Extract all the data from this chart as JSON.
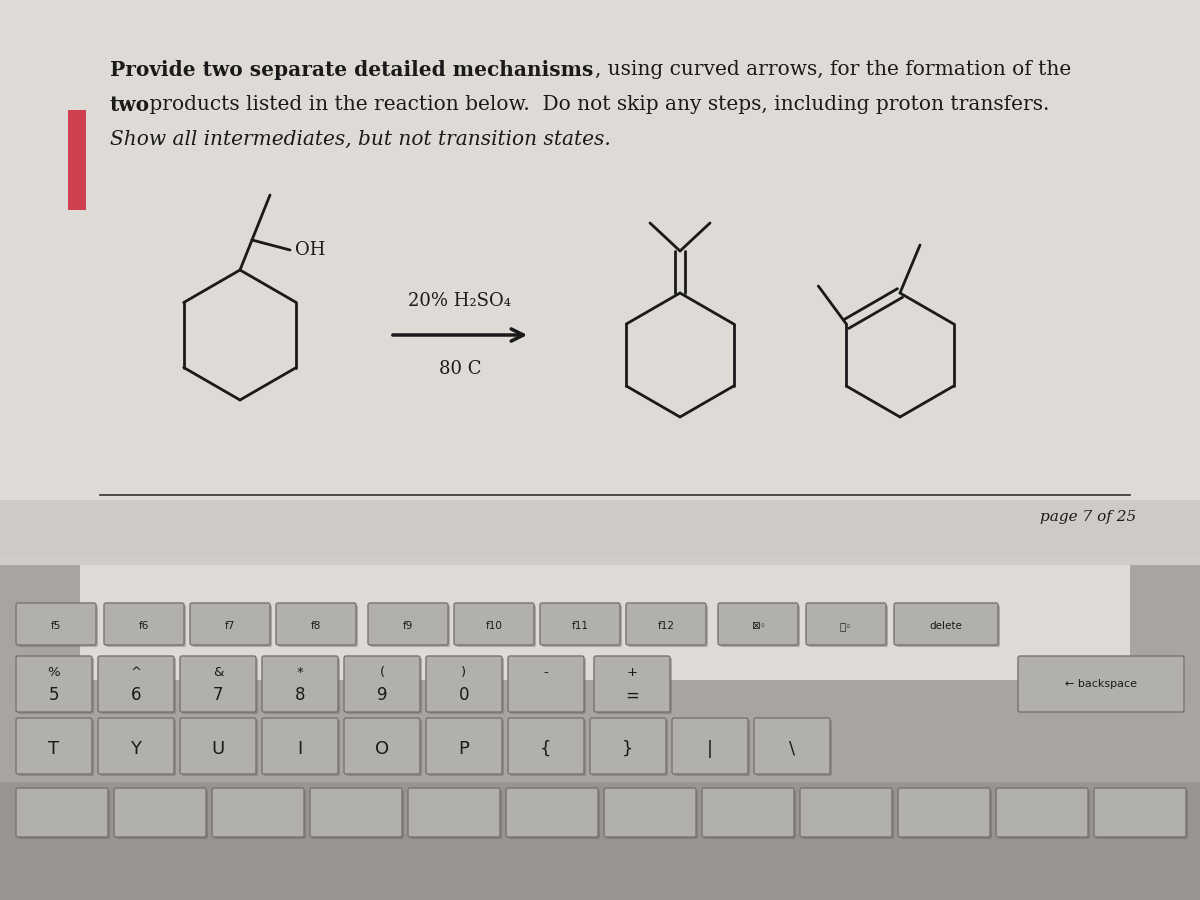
{
  "title_bold": "Provide two separate detailed mechanisms",
  "title_normal": ", using curved arrows, for the formation of the",
  "line2_bold": "two",
  "line2_normal": " products listed in the reaction below.  Do not skip any steps, including proton transfers.",
  "line3_italic": "Show all intermediates, but not transition states.",
  "reagent_label_top": "20% H₂SO₄",
  "reagent_label_bottom": "80 C",
  "oh_label": "OH",
  "page_text": "page 7 of 25",
  "bg_color": "#c8c5c0",
  "paper_color": "#dedad5",
  "text_color": "#1a1a1a",
  "key_face": "#b8b5b0",
  "key_edge": "#888580",
  "key_text": "#1a1a1a"
}
